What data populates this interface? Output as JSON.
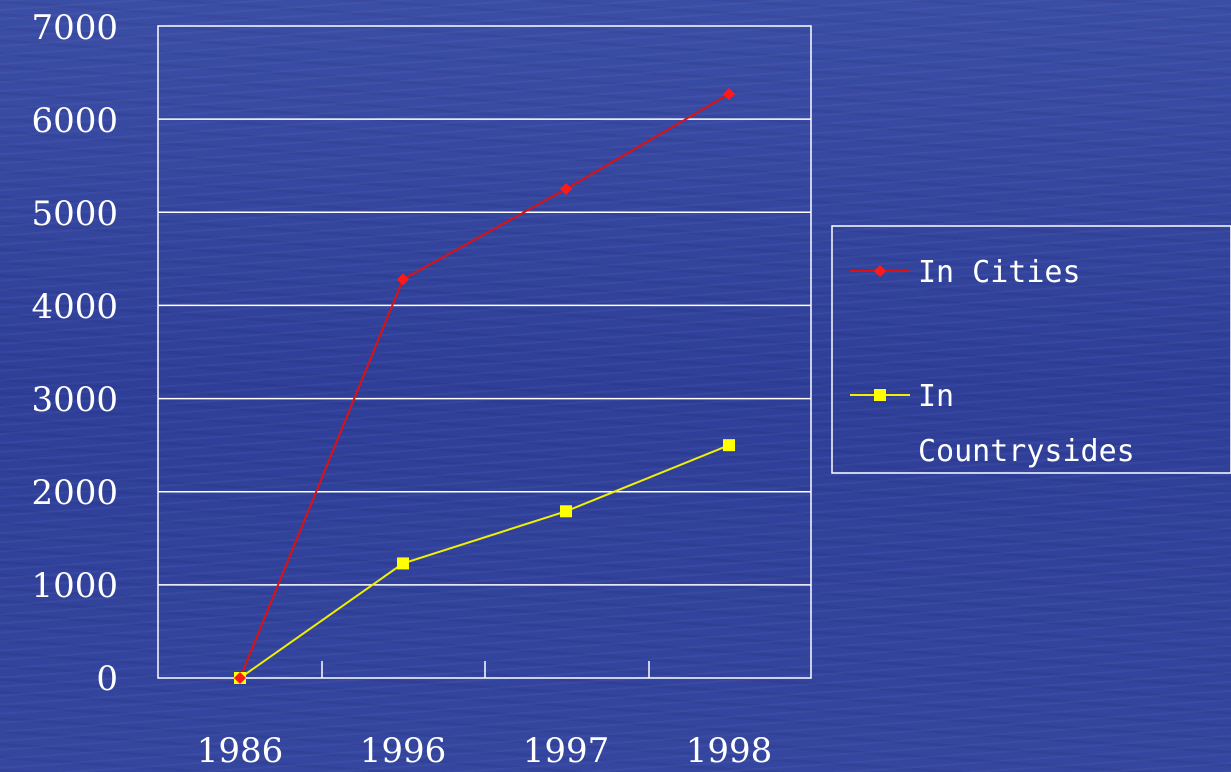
{
  "chart_data": {
    "type": "line",
    "categories": [
      "1986",
      "1996",
      "1997",
      "1998"
    ],
    "series": [
      {
        "name": "In Cities",
        "values": [
          0,
          4280,
          5250,
          6270
        ],
        "color": "#ff1a1a",
        "marker": "diamond"
      },
      {
        "name": "In Countrysides",
        "values": [
          0,
          1230,
          1790,
          2500
        ],
        "color": "#ffff00",
        "marker": "square"
      }
    ],
    "yticks": [
      "0",
      "1000",
      "2000",
      "3000",
      "4000",
      "5000",
      "6000",
      "7000"
    ],
    "ylim": [
      0,
      7000
    ],
    "grid": true,
    "legend_position": "right",
    "legend": {
      "cities_label": "In Cities",
      "countrysides_label_line1": "In",
      "countrysides_label_line2": "Countrysides"
    }
  }
}
